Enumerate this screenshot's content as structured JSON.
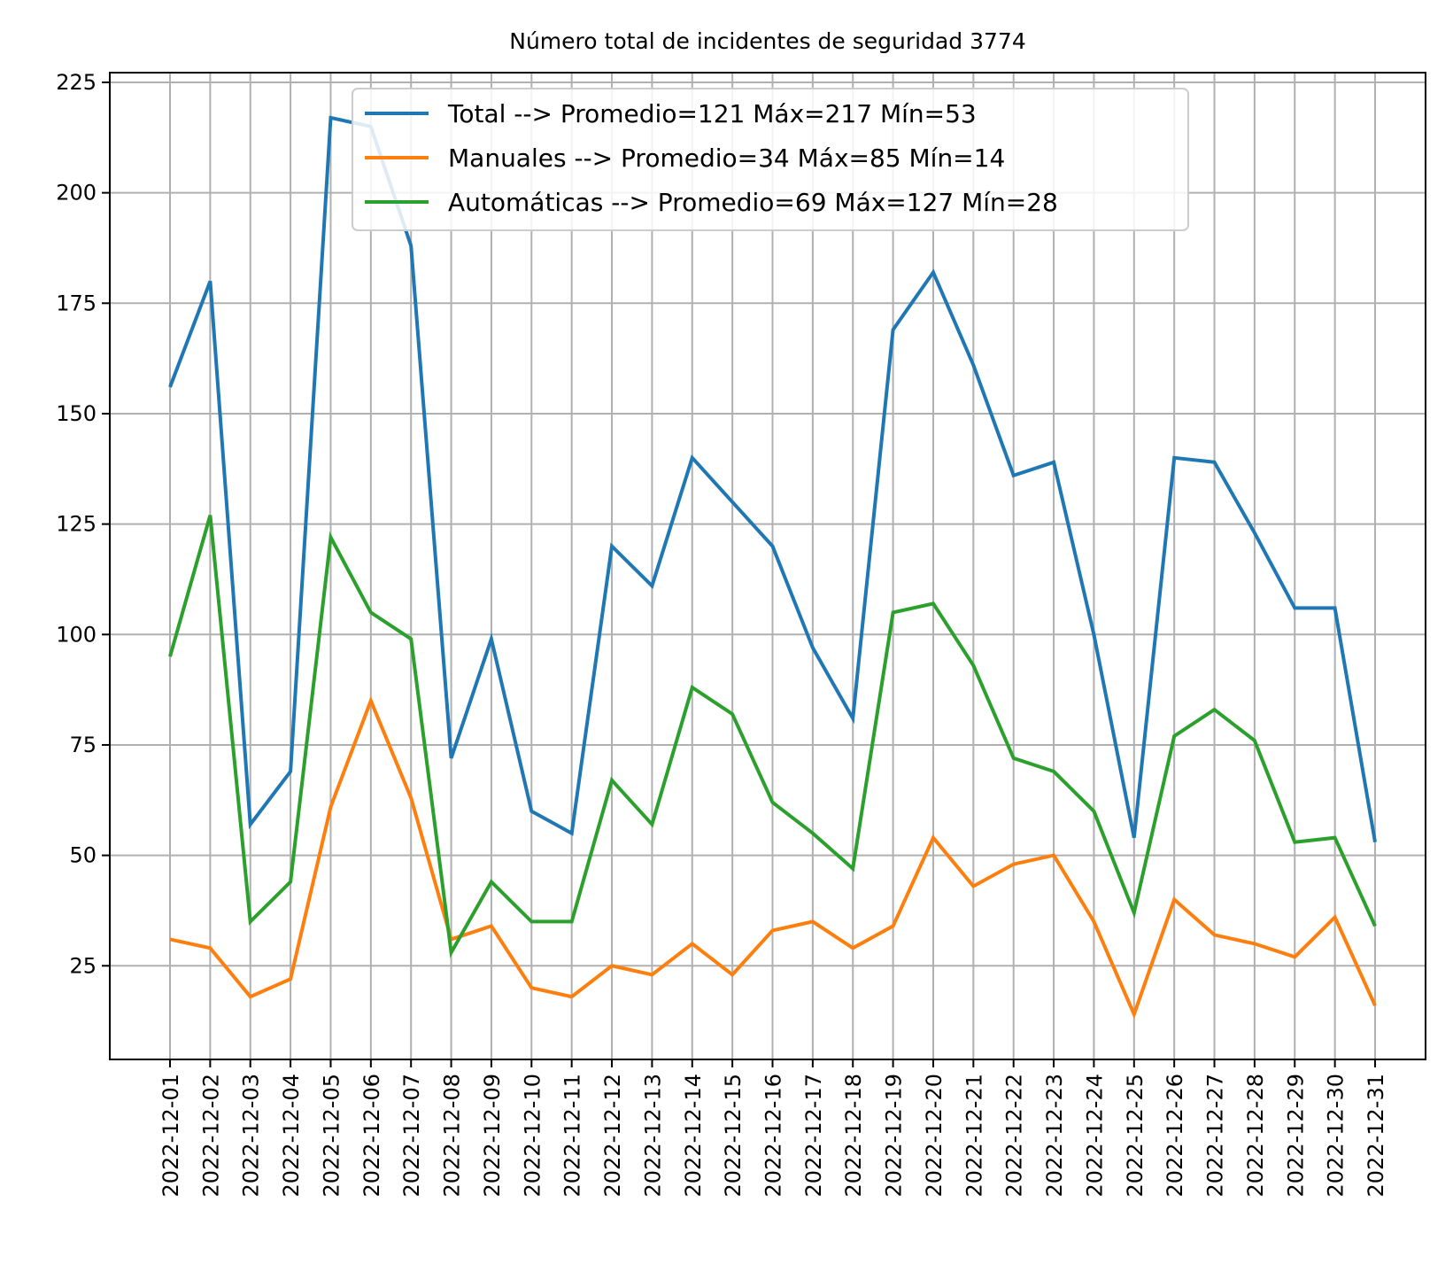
{
  "chart_data": {
    "type": "line",
    "title": "Número total de incidentes de seguridad 3774",
    "xlabel": "",
    "ylabel": "",
    "grid": true,
    "legend_position": "top-center",
    "ylim": [
      3.8,
      227.2
    ],
    "yticks": [
      25,
      50,
      75,
      100,
      125,
      150,
      175,
      200,
      225
    ],
    "x": [
      "2022-12-01",
      "2022-12-02",
      "2022-12-03",
      "2022-12-04",
      "2022-12-05",
      "2022-12-06",
      "2022-12-07",
      "2022-12-08",
      "2022-12-09",
      "2022-12-10",
      "2022-12-11",
      "2022-12-12",
      "2022-12-13",
      "2022-12-14",
      "2022-12-15",
      "2022-12-16",
      "2022-12-17",
      "2022-12-18",
      "2022-12-19",
      "2022-12-20",
      "2022-12-21",
      "2022-12-22",
      "2022-12-23",
      "2022-12-24",
      "2022-12-25",
      "2022-12-26",
      "2022-12-27",
      "2022-12-28",
      "2022-12-29",
      "2022-12-30",
      "2022-12-31"
    ],
    "series": [
      {
        "name": "Total --> Promedio=121 Máx=217 Mín=53",
        "color": "#1f77b4",
        "values": [
          156,
          180,
          57,
          69,
          217,
          215,
          188,
          72,
          99,
          60,
          55,
          120,
          111,
          140,
          130,
          120,
          97,
          81,
          169,
          182,
          161,
          136,
          139,
          100,
          54,
          140,
          139,
          123,
          106,
          106,
          53
        ]
      },
      {
        "name": "Manuales --> Promedio=34 Máx=85 Mín=14",
        "color": "#ff7f0e",
        "values": [
          31,
          29,
          18,
          22,
          61,
          85,
          63,
          31,
          34,
          20,
          18,
          25,
          23,
          30,
          23,
          33,
          35,
          29,
          34,
          54,
          43,
          48,
          50,
          35,
          14,
          40,
          32,
          30,
          27,
          36,
          16
        ]
      },
      {
        "name": "Automáticas --> Promedio=69 Máx=127 Mín=28",
        "color": "#2ca02c",
        "values": [
          95,
          127,
          35,
          44,
          122,
          105,
          99,
          28,
          44,
          35,
          35,
          67,
          57,
          88,
          82,
          62,
          55,
          47,
          105,
          107,
          93,
          72,
          69,
          60,
          37,
          77,
          83,
          76,
          53,
          54,
          34
        ]
      }
    ]
  }
}
